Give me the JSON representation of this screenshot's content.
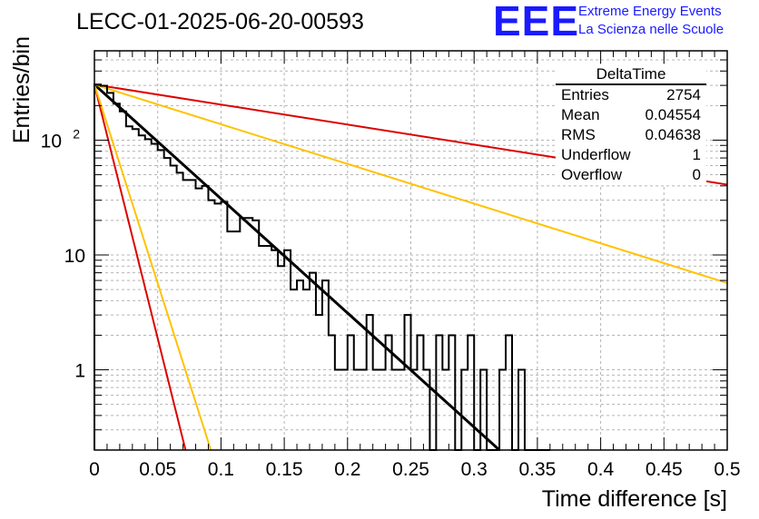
{
  "header": {
    "run_title": "LECC-01-2025-06-20-00593",
    "logo_text": "EEE",
    "logo_line1": "Extreme Energy Events",
    "logo_line2": "La Scienza nelle Scuole"
  },
  "stats": {
    "title": "DeltaTime",
    "rows": [
      {
        "label": "Entries",
        "value": "2754"
      },
      {
        "label": "Mean",
        "value": "0.04554"
      },
      {
        "label": "RMS",
        "value": "0.04638"
      },
      {
        "label": "Underflow",
        "value": "1"
      },
      {
        "label": "Overflow",
        "value": "0"
      }
    ]
  },
  "chart_data": {
    "type": "line",
    "title": "LECC-01-2025-06-20-00593",
    "xlabel": "Time difference [s]",
    "ylabel": "Entries/bin",
    "xlim": [
      0,
      0.5
    ],
    "ylim": [
      0.2,
      600
    ],
    "yscale": "log",
    "grid": true,
    "x_ticks": [
      "0",
      "0.05",
      "0.1",
      "0.15",
      "0.2",
      "0.25",
      "0.3",
      "0.35",
      "0.4",
      "0.45",
      "0.5"
    ],
    "y_ticks": [
      "1",
      "10",
      "10^2"
    ],
    "histogram": {
      "name": "DeltaTime",
      "bin_width": 0.005,
      "counts": [
        305,
        298,
        258,
        208,
        178,
        132,
        125,
        110,
        102,
        93,
        82,
        70,
        60,
        52,
        45,
        45,
        38,
        40,
        30,
        28,
        29,
        16,
        16,
        21,
        21,
        20,
        12,
        12,
        11,
        8,
        11,
        5,
        6,
        5,
        7,
        3,
        6,
        2,
        1,
        1,
        2,
        1,
        1,
        3,
        1,
        1,
        2,
        1,
        1,
        3,
        1,
        2,
        1,
        0,
        2,
        1,
        2,
        0,
        1,
        2,
        0,
        1,
        0,
        0,
        1,
        2,
        0,
        1,
        0,
        0,
        0,
        0
      ]
    },
    "curves": [
      {
        "label": "fit",
        "color": "#000000",
        "points": [
          [
            0.0,
            305
          ],
          [
            0.32,
            0.2
          ]
        ]
      },
      {
        "label": "upper-red",
        "color": "#dd0000",
        "points": [
          [
            0.0,
            305
          ],
          [
            0.5,
            41
          ]
        ]
      },
      {
        "label": "upper-yellow",
        "color": "#ffc200",
        "points": [
          [
            0.0,
            305
          ],
          [
            0.5,
            5.7
          ]
        ]
      },
      {
        "label": "steep-red",
        "color": "#dd0000",
        "points": [
          [
            0.0,
            305
          ],
          [
            0.072,
            0.2
          ]
        ]
      },
      {
        "label": "steep-yellow",
        "color": "#ffc200",
        "points": [
          [
            0.0,
            305
          ],
          [
            0.092,
            0.2
          ]
        ]
      }
    ]
  }
}
